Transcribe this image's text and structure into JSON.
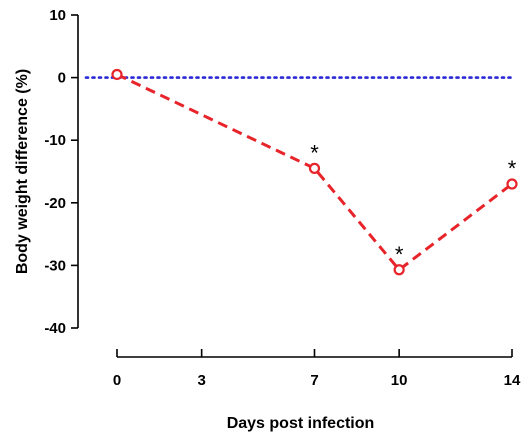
{
  "chart_data": {
    "type": "line",
    "title": "",
    "xlabel": "Days post infection",
    "ylabel": "Body weight difference (%)",
    "xlim": [
      0,
      14
    ],
    "ylim": [
      -40,
      10
    ],
    "x_ticks": [
      0,
      3,
      7,
      10,
      14
    ],
    "y_ticks": [
      10,
      0,
      -10,
      -20,
      -30,
      -40
    ],
    "x_tick_labels": [
      "0",
      "3",
      "7",
      "10",
      "14"
    ],
    "y_tick_labels": [
      "10",
      "0",
      "-10",
      "-20",
      "-30",
      "-40"
    ],
    "grid": false,
    "legend": "none",
    "series": [
      {
        "x": [
          0,
          7,
          10,
          14
        ],
        "y": [
          0.5,
          -14.5,
          -30.7,
          -17
        ],
        "color": "#e8242b",
        "line_style": "dashed",
        "marker": "open-circle"
      }
    ],
    "reference_line": {
      "y": 0,
      "color": "#2b2bd6",
      "line_style": "dotted"
    },
    "annotations": [
      {
        "x": 7,
        "text": "*"
      },
      {
        "x": 10,
        "text": "*"
      },
      {
        "x": 14,
        "text": "*"
      }
    ]
  }
}
